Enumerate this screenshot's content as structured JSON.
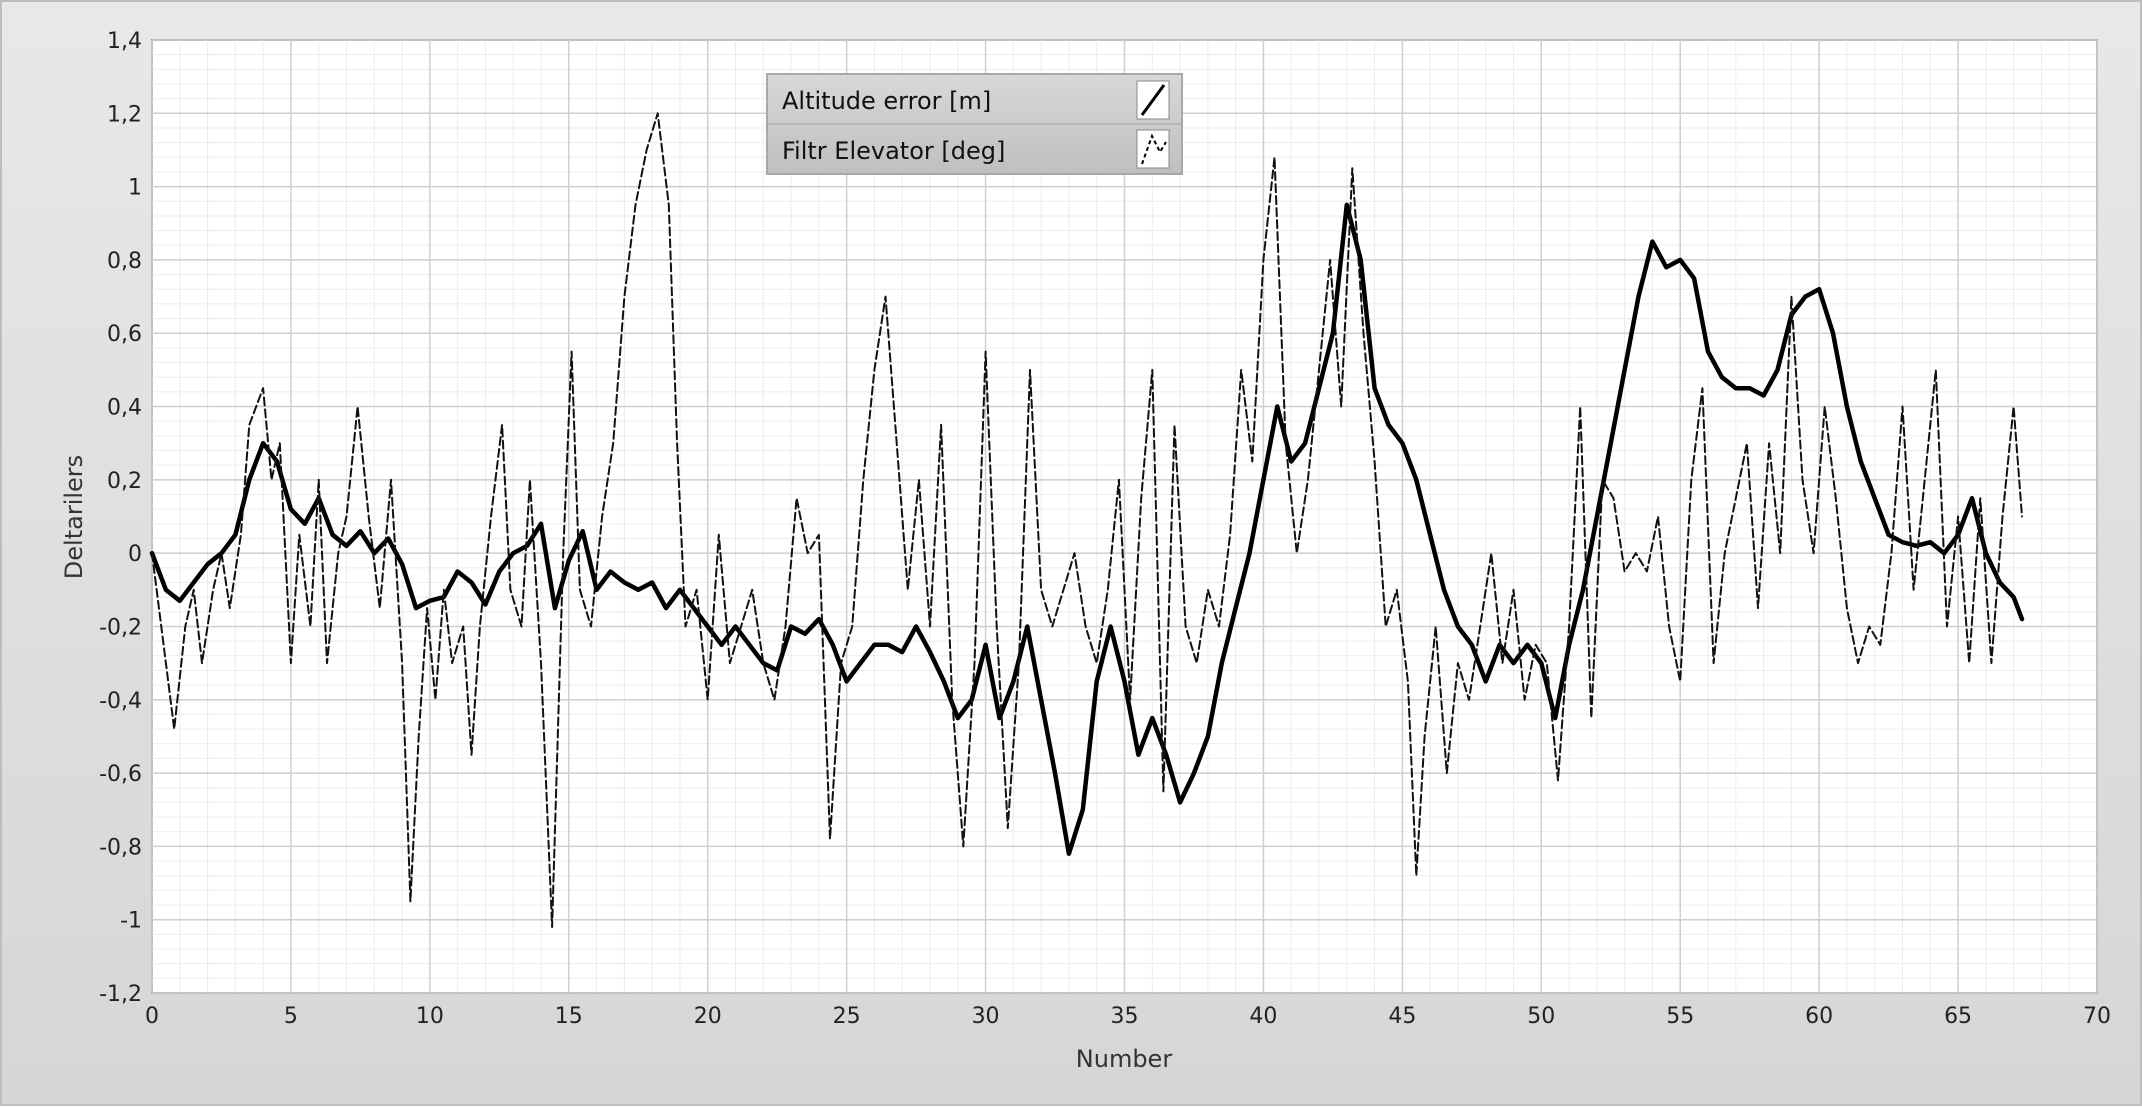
{
  "chart_data": {
    "type": "line",
    "title": "",
    "xlabel": "Number",
    "ylabel": "Deltarilers",
    "xlim": [
      0,
      70
    ],
    "ylim": [
      -1.2,
      1.4
    ],
    "x_ticks": [
      0,
      5,
      10,
      15,
      20,
      25,
      30,
      35,
      40,
      45,
      50,
      55,
      60,
      65,
      70
    ],
    "y_ticks": [
      -1.2,
      -1,
      -0.8,
      -0.6,
      -0.4,
      -0.2,
      0,
      0.2,
      0.4,
      0.6,
      0.8,
      1,
      1.2,
      1.4
    ],
    "y_tick_labels": [
      "-1,2",
      "-1",
      "-0,8",
      "-0,6",
      "-0,4",
      "-0,2",
      "0",
      "0,2",
      "0,4",
      "0,6",
      "0,8",
      "1",
      "1,2",
      "1,4"
    ],
    "x_tick_labels": [
      "0",
      "5",
      "10",
      "15",
      "20",
      "25",
      "30",
      "35",
      "40",
      "45",
      "50",
      "55",
      "60",
      "65",
      "70"
    ],
    "grid": true,
    "legend_position": "top-center",
    "series": [
      {
        "name": "Altitude error [m]",
        "style": "solid-thick",
        "color": "#000000",
        "points": [
          [
            0,
            0.0
          ],
          [
            0.5,
            -0.1
          ],
          [
            1,
            -0.13
          ],
          [
            1.5,
            -0.08
          ],
          [
            2,
            -0.03
          ],
          [
            2.5,
            0.0
          ],
          [
            3,
            0.05
          ],
          [
            3.5,
            0.2
          ],
          [
            4,
            0.3
          ],
          [
            4.5,
            0.25
          ],
          [
            5,
            0.12
          ],
          [
            5.5,
            0.08
          ],
          [
            6,
            0.15
          ],
          [
            6.5,
            0.05
          ],
          [
            7,
            0.02
          ],
          [
            7.5,
            0.06
          ],
          [
            8,
            0.0
          ],
          [
            8.5,
            0.04
          ],
          [
            9,
            -0.03
          ],
          [
            9.5,
            -0.15
          ],
          [
            10,
            -0.13
          ],
          [
            10.5,
            -0.12
          ],
          [
            11,
            -0.05
          ],
          [
            11.5,
            -0.08
          ],
          [
            12,
            -0.14
          ],
          [
            12.5,
            -0.05
          ],
          [
            13,
            0.0
          ],
          [
            13.5,
            0.02
          ],
          [
            14,
            0.08
          ],
          [
            14.5,
            -0.15
          ],
          [
            15,
            -0.02
          ],
          [
            15.5,
            0.06
          ],
          [
            16,
            -0.1
          ],
          [
            16.5,
            -0.05
          ],
          [
            17,
            -0.08
          ],
          [
            17.5,
            -0.1
          ],
          [
            18,
            -0.08
          ],
          [
            18.5,
            -0.15
          ],
          [
            19,
            -0.1
          ],
          [
            19.5,
            -0.15
          ],
          [
            20,
            -0.2
          ],
          [
            20.5,
            -0.25
          ],
          [
            21,
            -0.2
          ],
          [
            21.5,
            -0.25
          ],
          [
            22,
            -0.3
          ],
          [
            22.5,
            -0.32
          ],
          [
            23,
            -0.2
          ],
          [
            23.5,
            -0.22
          ],
          [
            24,
            -0.18
          ],
          [
            24.5,
            -0.25
          ],
          [
            25,
            -0.35
          ],
          [
            25.5,
            -0.3
          ],
          [
            26,
            -0.25
          ],
          [
            26.5,
            -0.25
          ],
          [
            27,
            -0.27
          ],
          [
            27.5,
            -0.2
          ],
          [
            28,
            -0.27
          ],
          [
            28.5,
            -0.35
          ],
          [
            29,
            -0.45
          ],
          [
            29.5,
            -0.4
          ],
          [
            30,
            -0.25
          ],
          [
            30.5,
            -0.45
          ],
          [
            31,
            -0.35
          ],
          [
            31.5,
            -0.2
          ],
          [
            32,
            -0.4
          ],
          [
            32.5,
            -0.6
          ],
          [
            33,
            -0.82
          ],
          [
            33.5,
            -0.7
          ],
          [
            34,
            -0.35
          ],
          [
            34.5,
            -0.2
          ],
          [
            35,
            -0.35
          ],
          [
            35.5,
            -0.55
          ],
          [
            36,
            -0.45
          ],
          [
            36.5,
            -0.55
          ],
          [
            37,
            -0.68
          ],
          [
            37.5,
            -0.6
          ],
          [
            38,
            -0.5
          ],
          [
            38.5,
            -0.3
          ],
          [
            39,
            -0.15
          ],
          [
            39.5,
            0.0
          ],
          [
            40,
            0.2
          ],
          [
            40.5,
            0.4
          ],
          [
            41,
            0.25
          ],
          [
            41.5,
            0.3
          ],
          [
            42,
            0.45
          ],
          [
            42.5,
            0.6
          ],
          [
            43,
            0.95
          ],
          [
            43.5,
            0.8
          ],
          [
            44,
            0.45
          ],
          [
            44.5,
            0.35
          ],
          [
            45,
            0.3
          ],
          [
            45.5,
            0.2
          ],
          [
            46,
            0.05
          ],
          [
            46.5,
            -0.1
          ],
          [
            47,
            -0.2
          ],
          [
            47.5,
            -0.25
          ],
          [
            48,
            -0.35
          ],
          [
            48.5,
            -0.25
          ],
          [
            49,
            -0.3
          ],
          [
            49.5,
            -0.25
          ],
          [
            50,
            -0.3
          ],
          [
            50.5,
            -0.45
          ],
          [
            51,
            -0.25
          ],
          [
            51.5,
            -0.1
          ],
          [
            52,
            0.1
          ],
          [
            52.5,
            0.3
          ],
          [
            53,
            0.5
          ],
          [
            53.5,
            0.7
          ],
          [
            54,
            0.85
          ],
          [
            54.5,
            0.78
          ],
          [
            55,
            0.8
          ],
          [
            55.5,
            0.75
          ],
          [
            56,
            0.55
          ],
          [
            56.5,
            0.48
          ],
          [
            57,
            0.45
          ],
          [
            57.5,
            0.45
          ],
          [
            58,
            0.43
          ],
          [
            58.5,
            0.5
          ],
          [
            59,
            0.65
          ],
          [
            59.5,
            0.7
          ],
          [
            60,
            0.72
          ],
          [
            60.5,
            0.6
          ],
          [
            61,
            0.4
          ],
          [
            61.5,
            0.25
          ],
          [
            62,
            0.15
          ],
          [
            62.5,
            0.05
          ],
          [
            63,
            0.03
          ],
          [
            63.5,
            0.02
          ],
          [
            64,
            0.03
          ],
          [
            64.5,
            0.0
          ],
          [
            65,
            0.05
          ],
          [
            65.5,
            0.15
          ],
          [
            66,
            0.0
          ],
          [
            66.5,
            -0.08
          ],
          [
            67,
            -0.12
          ],
          [
            67.3,
            -0.18
          ]
        ]
      },
      {
        "name": "Filtr Elevator [deg]",
        "style": "dashed",
        "color": "#111111",
        "points": [
          [
            0,
            0.0
          ],
          [
            0.5,
            -0.3
          ],
          [
            0.8,
            -0.48
          ],
          [
            1.2,
            -0.2
          ],
          [
            1.5,
            -0.1
          ],
          [
            1.8,
            -0.3
          ],
          [
            2.2,
            -0.1
          ],
          [
            2.5,
            0.0
          ],
          [
            2.8,
            -0.15
          ],
          [
            3.2,
            0.05
          ],
          [
            3.5,
            0.35
          ],
          [
            4,
            0.45
          ],
          [
            4.3,
            0.2
          ],
          [
            4.6,
            0.3
          ],
          [
            5,
            -0.3
          ],
          [
            5.3,
            0.05
          ],
          [
            5.7,
            -0.2
          ],
          [
            6,
            0.2
          ],
          [
            6.3,
            -0.3
          ],
          [
            6.7,
            0.0
          ],
          [
            7,
            0.1
          ],
          [
            7.4,
            0.4
          ],
          [
            7.8,
            0.1
          ],
          [
            8.2,
            -0.15
          ],
          [
            8.6,
            0.2
          ],
          [
            9,
            -0.3
          ],
          [
            9.3,
            -0.95
          ],
          [
            9.6,
            -0.5
          ],
          [
            9.9,
            -0.15
          ],
          [
            10.2,
            -0.4
          ],
          [
            10.5,
            -0.1
          ],
          [
            10.8,
            -0.3
          ],
          [
            11.2,
            -0.2
          ],
          [
            11.5,
            -0.55
          ],
          [
            11.8,
            -0.2
          ],
          [
            12.2,
            0.1
          ],
          [
            12.6,
            0.35
          ],
          [
            12.9,
            -0.1
          ],
          [
            13.3,
            -0.2
          ],
          [
            13.6,
            0.2
          ],
          [
            14,
            -0.3
          ],
          [
            14.4,
            -1.02
          ],
          [
            14.8,
            0.0
          ],
          [
            15.1,
            0.55
          ],
          [
            15.4,
            -0.1
          ],
          [
            15.8,
            -0.2
          ],
          [
            16.2,
            0.1
          ],
          [
            16.6,
            0.3
          ],
          [
            17,
            0.7
          ],
          [
            17.4,
            0.95
          ],
          [
            17.8,
            1.1
          ],
          [
            18.2,
            1.2
          ],
          [
            18.6,
            0.95
          ],
          [
            18.9,
            0.3
          ],
          [
            19.2,
            -0.2
          ],
          [
            19.6,
            -0.1
          ],
          [
            20,
            -0.4
          ],
          [
            20.4,
            0.05
          ],
          [
            20.8,
            -0.3
          ],
          [
            21.2,
            -0.2
          ],
          [
            21.6,
            -0.1
          ],
          [
            22,
            -0.3
          ],
          [
            22.4,
            -0.4
          ],
          [
            22.8,
            -0.2
          ],
          [
            23.2,
            0.15
          ],
          [
            23.6,
            0.0
          ],
          [
            24,
            0.05
          ],
          [
            24.4,
            -0.78
          ],
          [
            24.8,
            -0.3
          ],
          [
            25.2,
            -0.2
          ],
          [
            25.6,
            0.2
          ],
          [
            26,
            0.5
          ],
          [
            26.4,
            0.7
          ],
          [
            26.8,
            0.3
          ],
          [
            27.2,
            -0.1
          ],
          [
            27.6,
            0.2
          ],
          [
            28,
            -0.2
          ],
          [
            28.4,
            0.35
          ],
          [
            28.8,
            -0.4
          ],
          [
            29.2,
            -0.8
          ],
          [
            29.6,
            -0.3
          ],
          [
            30,
            0.55
          ],
          [
            30.4,
            -0.2
          ],
          [
            30.8,
            -0.75
          ],
          [
            31.2,
            -0.3
          ],
          [
            31.6,
            0.5
          ],
          [
            32,
            -0.1
          ],
          [
            32.4,
            -0.2
          ],
          [
            32.8,
            -0.1
          ],
          [
            33.2,
            0.0
          ],
          [
            33.6,
            -0.2
          ],
          [
            34,
            -0.3
          ],
          [
            34.4,
            -0.1
          ],
          [
            34.8,
            0.2
          ],
          [
            35.2,
            -0.4
          ],
          [
            35.6,
            0.15
          ],
          [
            36,
            0.5
          ],
          [
            36.4,
            -0.65
          ],
          [
            36.8,
            0.35
          ],
          [
            37.2,
            -0.2
          ],
          [
            37.6,
            -0.3
          ],
          [
            38,
            -0.1
          ],
          [
            38.4,
            -0.2
          ],
          [
            38.8,
            0.05
          ],
          [
            39.2,
            0.5
          ],
          [
            39.6,
            0.25
          ],
          [
            40,
            0.8
          ],
          [
            40.4,
            1.08
          ],
          [
            40.8,
            0.3
          ],
          [
            41.2,
            0.0
          ],
          [
            41.6,
            0.2
          ],
          [
            42,
            0.5
          ],
          [
            42.4,
            0.8
          ],
          [
            42.8,
            0.4
          ],
          [
            43.2,
            1.05
          ],
          [
            43.6,
            0.6
          ],
          [
            44,
            0.25
          ],
          [
            44.4,
            -0.2
          ],
          [
            44.8,
            -0.1
          ],
          [
            45.2,
            -0.35
          ],
          [
            45.5,
            -0.88
          ],
          [
            45.8,
            -0.5
          ],
          [
            46.2,
            -0.2
          ],
          [
            46.6,
            -0.6
          ],
          [
            47,
            -0.3
          ],
          [
            47.4,
            -0.4
          ],
          [
            47.8,
            -0.2
          ],
          [
            48.2,
            0.0
          ],
          [
            48.6,
            -0.3
          ],
          [
            49,
            -0.1
          ],
          [
            49.4,
            -0.4
          ],
          [
            49.8,
            -0.25
          ],
          [
            50.2,
            -0.3
          ],
          [
            50.6,
            -0.62
          ],
          [
            51,
            -0.2
          ],
          [
            51.4,
            0.4
          ],
          [
            51.8,
            -0.45
          ],
          [
            52.2,
            0.2
          ],
          [
            52.6,
            0.15
          ],
          [
            53,
            -0.05
          ],
          [
            53.4,
            0.0
          ],
          [
            53.8,
            -0.05
          ],
          [
            54.2,
            0.1
          ],
          [
            54.6,
            -0.2
          ],
          [
            55,
            -0.35
          ],
          [
            55.4,
            0.2
          ],
          [
            55.8,
            0.45
          ],
          [
            56.2,
            -0.3
          ],
          [
            56.6,
            0.0
          ],
          [
            57,
            0.15
          ],
          [
            57.4,
            0.3
          ],
          [
            57.8,
            -0.15
          ],
          [
            58.2,
            0.3
          ],
          [
            58.6,
            0.0
          ],
          [
            59,
            0.7
          ],
          [
            59.4,
            0.2
          ],
          [
            59.8,
            0.0
          ],
          [
            60.2,
            0.4
          ],
          [
            60.6,
            0.15
          ],
          [
            61,
            -0.15
          ],
          [
            61.4,
            -0.3
          ],
          [
            61.8,
            -0.2
          ],
          [
            62.2,
            -0.25
          ],
          [
            62.6,
            0.0
          ],
          [
            63,
            0.4
          ],
          [
            63.4,
            -0.1
          ],
          [
            63.8,
            0.2
          ],
          [
            64.2,
            0.5
          ],
          [
            64.6,
            -0.2
          ],
          [
            65,
            0.1
          ],
          [
            65.4,
            -0.3
          ],
          [
            65.8,
            0.15
          ],
          [
            66.2,
            -0.3
          ],
          [
            66.6,
            0.1
          ],
          [
            67,
            0.4
          ],
          [
            67.3,
            0.1
          ]
        ]
      }
    ]
  }
}
